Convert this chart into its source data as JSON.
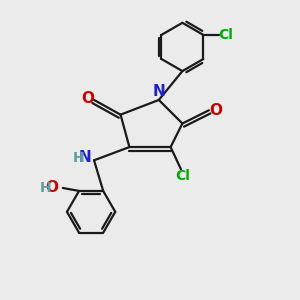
{
  "bg_color": "#ebebeb",
  "bond_color": "#1a1a1a",
  "n_color": "#2020cc",
  "o_color": "#cc0000",
  "cl_color": "#00aa00",
  "h_color": "#5f9ea0",
  "figsize": [
    3.0,
    3.0
  ],
  "dpi": 100,
  "lw": 1.6,
  "fs": 10,
  "xlim": [
    0,
    10
  ],
  "ylim": [
    0,
    10
  ]
}
